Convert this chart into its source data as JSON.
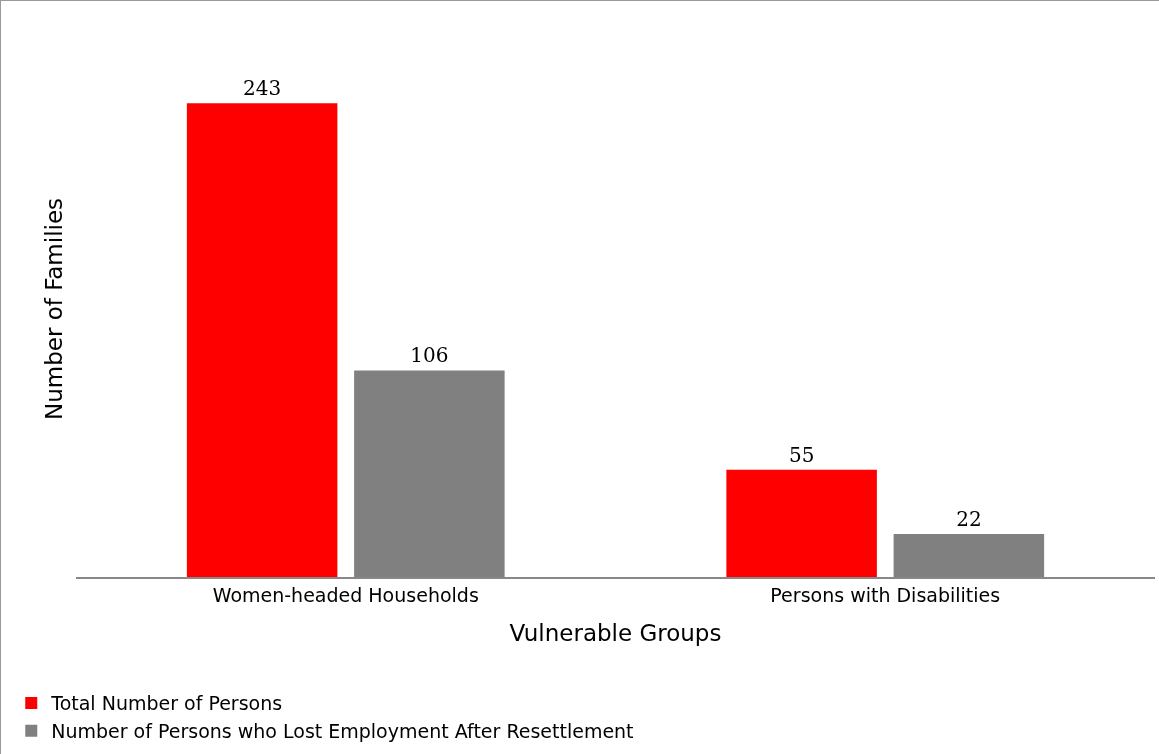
{
  "chart_data": {
    "type": "bar",
    "xlabel": "Vulnerable Groups",
    "ylabel": "Number of Families",
    "categories": [
      "Women-headed Households",
      "Persons with Disabilities"
    ],
    "series": [
      {
        "name": "Total Number of Persons",
        "color": "#ff0000",
        "values": [
          243,
          55
        ]
      },
      {
        "name": "Number of Persons who Lost Employment After Resettlement",
        "color": "#808080",
        "values": [
          106,
          22
        ]
      }
    ],
    "data_labels": true,
    "legend": "bottom left"
  }
}
